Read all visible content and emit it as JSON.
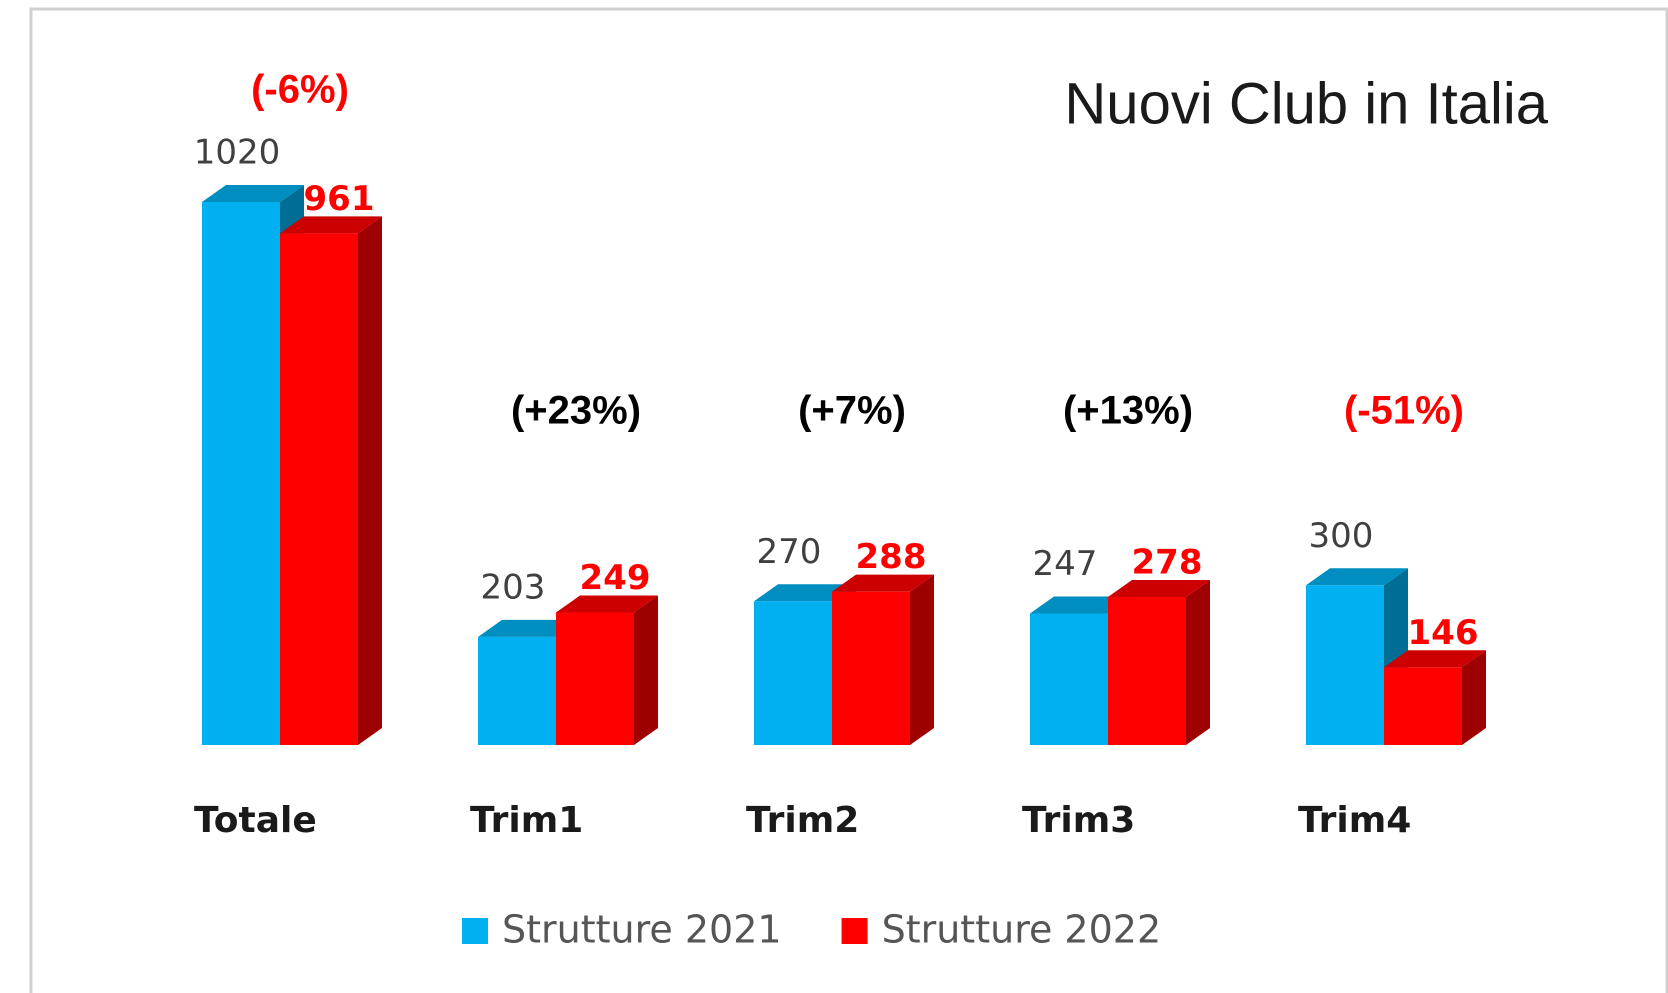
{
  "chart_data": {
    "type": "bar3d",
    "title": "Nuovi Club in Italia",
    "categories": [
      "Totale",
      "Trim1",
      "Trim2",
      "Trim3",
      "Trim4"
    ],
    "series": [
      {
        "name": "Strutture 2021",
        "color": "#00b0f0",
        "label_color": "#404040",
        "values": [
          1020,
          203,
          270,
          247,
          300
        ]
      },
      {
        "name": "Strutture 2022",
        "color": "#ff0000",
        "label_color": "#ff0000",
        "values": [
          961,
          249,
          288,
          278,
          146
        ]
      }
    ],
    "annotations": [
      {
        "text": "(-6%)",
        "color": "#ff0000"
      },
      {
        "text": "(+23%)",
        "color": "#000000"
      },
      {
        "text": "(+7%)",
        "color": "#000000"
      },
      {
        "text": "(+13%)",
        "color": "#000000"
      },
      {
        "text": "(-51%)",
        "color": "#ff0000"
      }
    ]
  }
}
